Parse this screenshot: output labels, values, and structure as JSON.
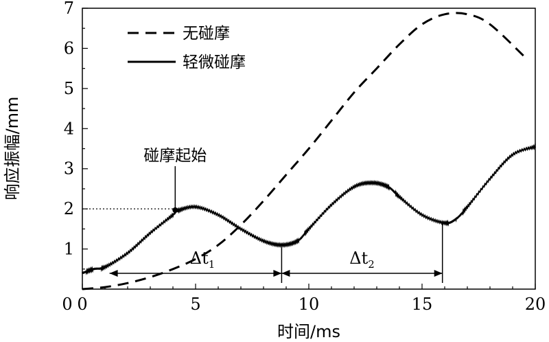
{
  "chart_data": {
    "type": "line",
    "xlabel": "时间/ms",
    "ylabel": "响应振幅/mm",
    "xlim": [
      0,
      20
    ],
    "ylim": [
      0,
      7
    ],
    "x_ticks": [
      "0",
      "5",
      "10",
      "15",
      "20"
    ],
    "y_ticks": [
      "1",
      "2",
      "3",
      "4",
      "5",
      "6",
      "7"
    ],
    "grid": false,
    "legend_position": "top-left",
    "series": [
      {
        "name": "无碰摩",
        "style": "dashed",
        "x": [
          0,
          1,
          2,
          3,
          4,
          5,
          6,
          7,
          8,
          9,
          10,
          11,
          12,
          13,
          14,
          15,
          16,
          17,
          18,
          19.6
        ],
        "y": [
          0.0,
          0.05,
          0.15,
          0.3,
          0.5,
          0.75,
          1.1,
          1.6,
          2.2,
          2.85,
          3.5,
          4.2,
          4.9,
          5.5,
          6.1,
          6.6,
          6.85,
          6.85,
          6.6,
          5.75
        ]
      },
      {
        "name": "轻微碰摩",
        "style": "solid",
        "x": [
          0,
          0.5,
          1,
          2,
          3,
          4,
          4.2,
          5,
          6,
          7,
          8,
          8.8,
          9.5,
          10,
          11,
          12,
          12.8,
          13.5,
          14,
          15,
          16,
          16.5,
          17,
          18,
          19,
          20
        ],
        "y": [
          0.4,
          0.5,
          0.55,
          0.9,
          1.4,
          1.85,
          1.95,
          2.05,
          1.85,
          1.5,
          1.2,
          1.1,
          1.2,
          1.5,
          2.1,
          2.55,
          2.65,
          2.55,
          2.3,
          1.85,
          1.65,
          1.75,
          2.05,
          2.75,
          3.35,
          3.55
        ]
      }
    ],
    "annotations": {
      "rub_start_label": "碰摩起始",
      "rub_start_point": {
        "x": 4.1,
        "y": 1.97
      },
      "ref_line_y": 2,
      "dt1_label": "Δt",
      "dt1_sub": "1",
      "dt1_range": [
        1.2,
        8.8
      ],
      "dt2_label": "Δt",
      "dt2_sub": "2",
      "dt2_range": [
        8.8,
        15.9
      ]
    }
  },
  "colors": {
    "line": "#000000",
    "background": "#ffffff"
  }
}
